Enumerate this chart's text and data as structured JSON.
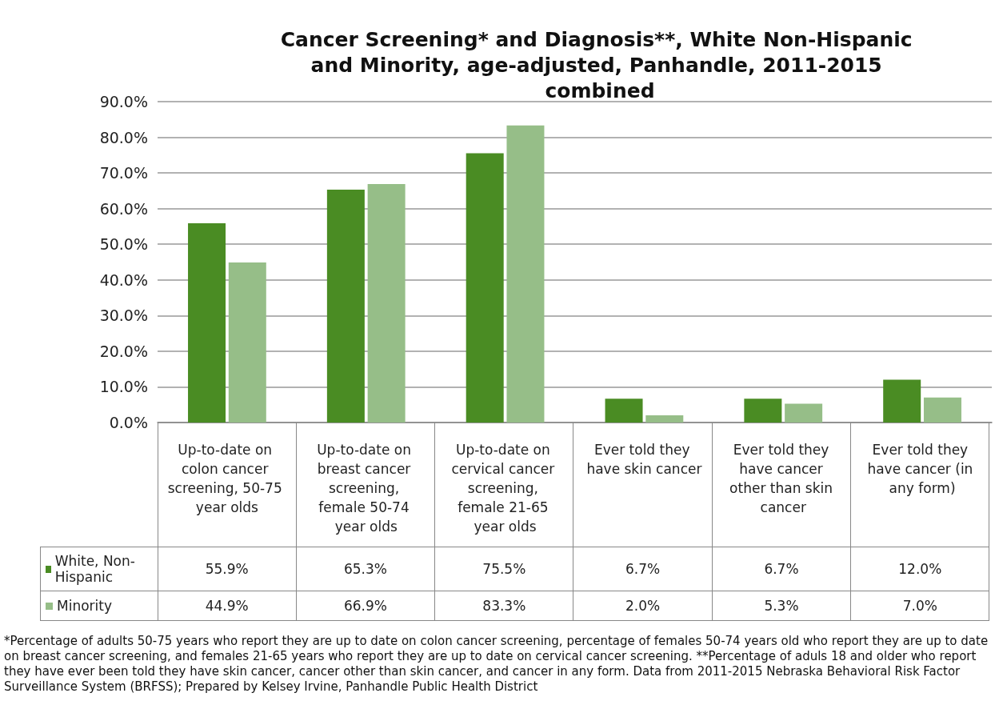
{
  "chart_data": {
    "type": "bar",
    "title": "Cancer Screening* and Diagnosis**, White Non-Hispanic and Minority, age-adjusted, Panhandle, 2011-2015 combined",
    "categories": [
      "Up-to-date on colon cancer screening, 50-75 year olds",
      "Up-to-date on breast cancer screening, female 50-74 year olds",
      "Up-to-date on cervical cancer screening, female 21-65 year olds",
      "Ever told they have skin cancer",
      "Ever told they have cancer other than skin cancer",
      "Ever told they have cancer (in any form)"
    ],
    "series": [
      {
        "name": "White, Non-Hispanic",
        "color": "#4a8c23",
        "values": [
          55.9,
          65.3,
          75.5,
          6.7,
          6.7,
          12.0
        ],
        "value_labels": [
          "55.9%",
          "65.3%",
          "75.5%",
          "6.7%",
          "6.7%",
          "12.0%"
        ]
      },
      {
        "name": "Minority",
        "color": "#96be88",
        "values": [
          44.9,
          66.9,
          83.3,
          2.0,
          5.3,
          7.0
        ],
        "value_labels": [
          "44.9%",
          "66.9%",
          "83.3%",
          "2.0%",
          "5.3%",
          "7.0%"
        ]
      }
    ],
    "ylim": [
      0,
      90
    ],
    "yticks": [
      {
        "value": 0,
        "label": "0.0%"
      },
      {
        "value": 10,
        "label": "10.0%"
      },
      {
        "value": 20,
        "label": "20.0%"
      },
      {
        "value": 30,
        "label": "30.0%"
      },
      {
        "value": 40,
        "label": "40.0%"
      },
      {
        "value": 50,
        "label": "50.0%"
      },
      {
        "value": 60,
        "label": "60.0%"
      },
      {
        "value": 70,
        "label": "70.0%"
      },
      {
        "value": 80,
        "label": "80.0%"
      },
      {
        "value": 90,
        "label": "90.0%"
      }
    ],
    "grid": "y",
    "legend": "bottom left",
    "annotations": [
      "*Percentage of adults 50-75 years who report they are up to date on colon cancer screening, percentage of females 50-74 years old who report they are up to date on breast cancer screening, and females 21-65 years who report they are up to date on cervical cancer screening. **Percentage of aduls 18 and older who report they have ever been told they have skin cancer, cancer other than skin cancer, and cancer in any form.  Data from 2011-2015 Nebraska Behavioral Risk Factor Surveillance System (BRFSS); Prepared by Kelsey Irvine, Panhandle Public Health District"
    ]
  }
}
